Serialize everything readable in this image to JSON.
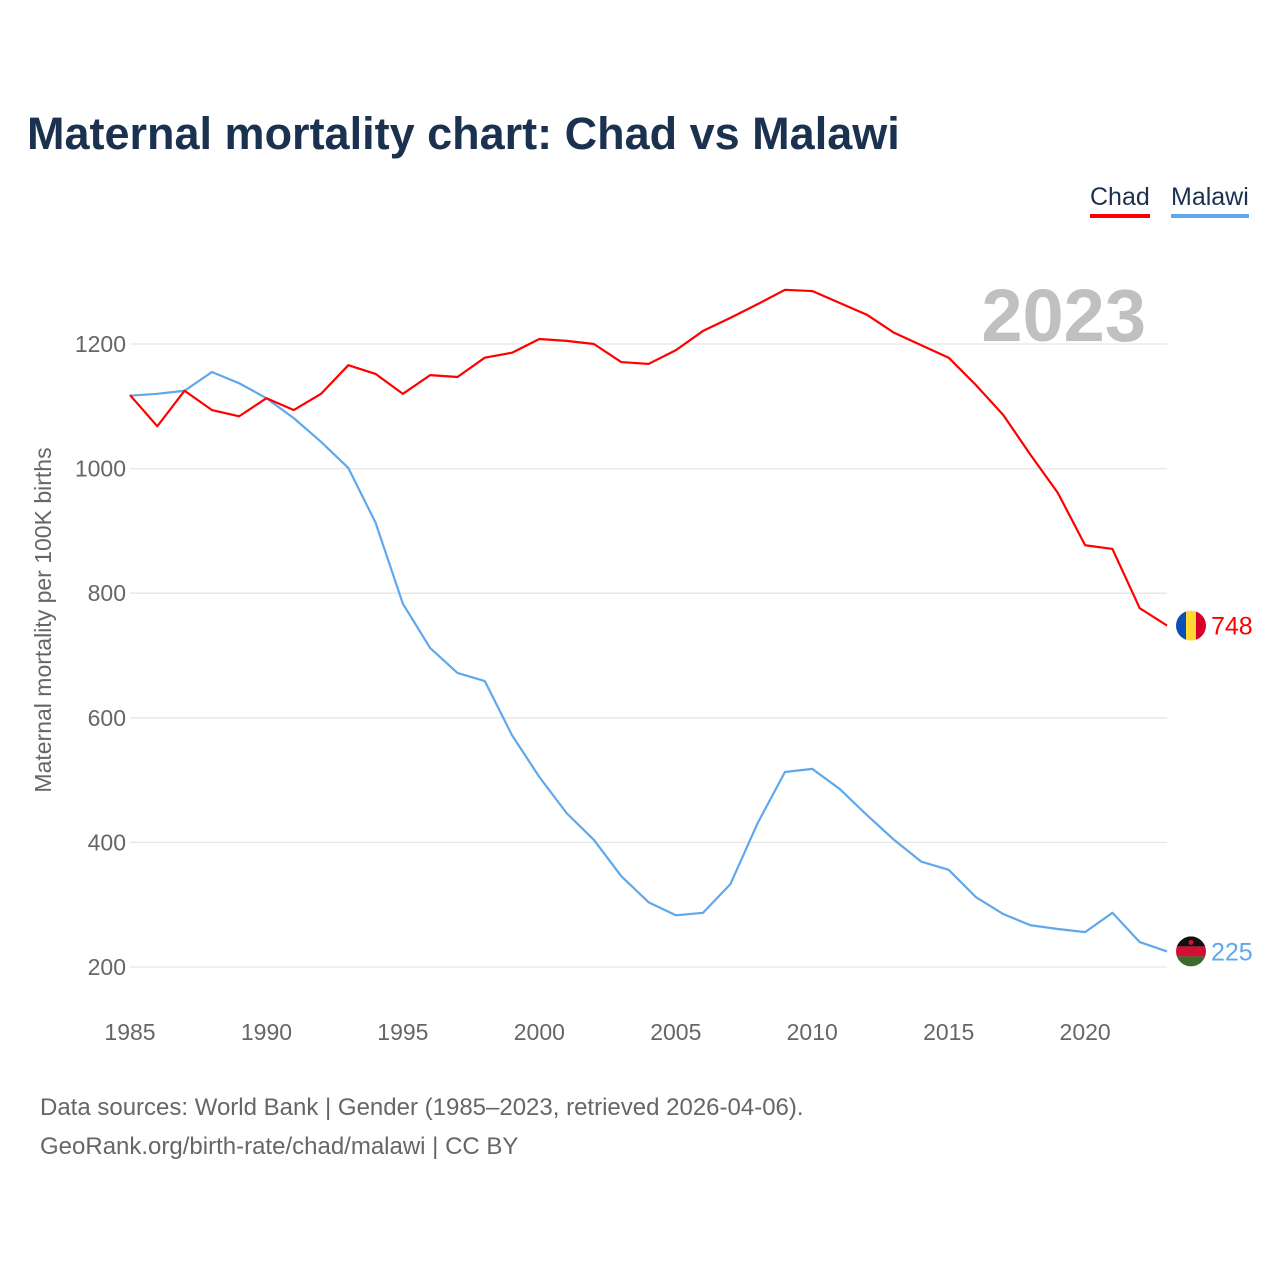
{
  "title": "Maternal mortality chart: Chad vs Malawi",
  "footer": {
    "line1": "Data sources: World Bank | Gender (1985–2023, retrieved 2026-04-06).",
    "line2": "GeoRank.org/birth-rate/chad/malawi | CC BY"
  },
  "chart_data": {
    "type": "line",
    "title": "Maternal mortality chart: Chad vs Malawi",
    "xlabel": "",
    "ylabel": "Maternal mortality per 100K births",
    "year_label": "2023",
    "x": [
      1985,
      1986,
      1987,
      1988,
      1989,
      1990,
      1991,
      1992,
      1993,
      1994,
      1995,
      1996,
      1997,
      1998,
      1999,
      2000,
      2001,
      2002,
      2003,
      2004,
      2005,
      2006,
      2007,
      2008,
      2009,
      2010,
      2011,
      2012,
      2013,
      2014,
      2015,
      2016,
      2017,
      2018,
      2019,
      2020,
      2021,
      2022,
      2023
    ],
    "xticks": [
      "1985",
      "1990",
      "1995",
      "2000",
      "2005",
      "2010",
      "2015",
      "2020"
    ],
    "yticks": [
      "200",
      "400",
      "600",
      "800",
      "1000",
      "1200"
    ],
    "ylim": [
      200,
      1200
    ],
    "xlim": [
      1985,
      2023
    ],
    "grid": true,
    "legend_position": "top-right",
    "series": [
      {
        "name": "Chad",
        "color": "#ff0000",
        "end_label": "748",
        "values": [
          1118,
          1068,
          1125,
          1094,
          1084,
          1113,
          1094,
          1120,
          1166,
          1152,
          1120,
          1150,
          1147,
          1178,
          1186,
          1208,
          1205,
          1200,
          1171,
          1168,
          1190,
          1221,
          1242,
          1264,
          1287,
          1285,
          1266,
          1247,
          1218,
          1198,
          1178,
          1134,
          1086,
          1022,
          961,
          877,
          871,
          776,
          748
        ]
      },
      {
        "name": "Malawi",
        "color": "#5fa8ec",
        "end_label": "225",
        "values": [
          1117,
          1120,
          1125,
          1155,
          1137,
          1113,
          1081,
          1043,
          1001,
          913,
          783,
          712,
          672,
          659,
          572,
          505,
          447,
          404,
          346,
          304,
          283,
          287,
          333,
          431,
          513,
          518,
          486,
          444,
          404,
          369,
          356,
          312,
          285,
          267,
          261,
          256,
          287,
          240,
          225
        ]
      }
    ]
  }
}
